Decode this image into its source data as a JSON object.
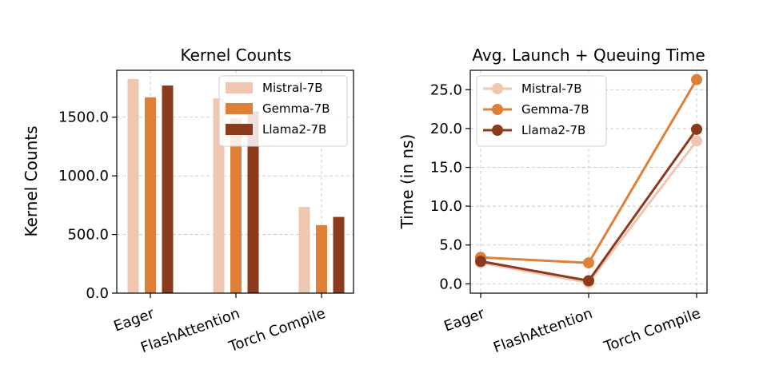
{
  "colors": {
    "mistral": "#efc6b0",
    "gemma": "#df7f38",
    "llama": "#8c3a1c"
  },
  "chart_data": [
    {
      "type": "bar",
      "title": "Kernel Counts",
      "xlabel": "",
      "ylabel": "Kernel Counts",
      "categories": [
        "Eager",
        "FlashAttention",
        "Torch Compile"
      ],
      "series": [
        {
          "name": "Mistral-7B",
          "values": [
            1825,
            1660,
            735
          ]
        },
        {
          "name": "Gemma-7B",
          "values": [
            1670,
            1490,
            580
          ]
        },
        {
          "name": "Llama2-7B",
          "values": [
            1770,
            1550,
            650
          ]
        }
      ],
      "yticks": [
        "0.0",
        "500.0",
        "1000.0",
        "1500.0"
      ],
      "ylim": [
        0,
        1900
      ],
      "grid": true,
      "legend": "top-right"
    },
    {
      "type": "line",
      "title": "Avg. Launch + Queuing Time",
      "xlabel": "",
      "ylabel": "Time (in ns)",
      "categories": [
        "Eager",
        "FlashAttention",
        "Torch Compile"
      ],
      "series": [
        {
          "name": "Mistral-7B",
          "values": [
            2.7,
            0.15,
            18.4
          ]
        },
        {
          "name": "Gemma-7B",
          "values": [
            3.4,
            2.7,
            26.3
          ]
        },
        {
          "name": "Llama2-7B",
          "values": [
            2.9,
            0.4,
            19.9
          ]
        }
      ],
      "yticks": [
        "0.0",
        "5.0",
        "10.0",
        "15.0",
        "20.0",
        "25.0"
      ],
      "ylim": [
        -1.2,
        27.5
      ],
      "grid": true,
      "legend": "top-left"
    }
  ]
}
